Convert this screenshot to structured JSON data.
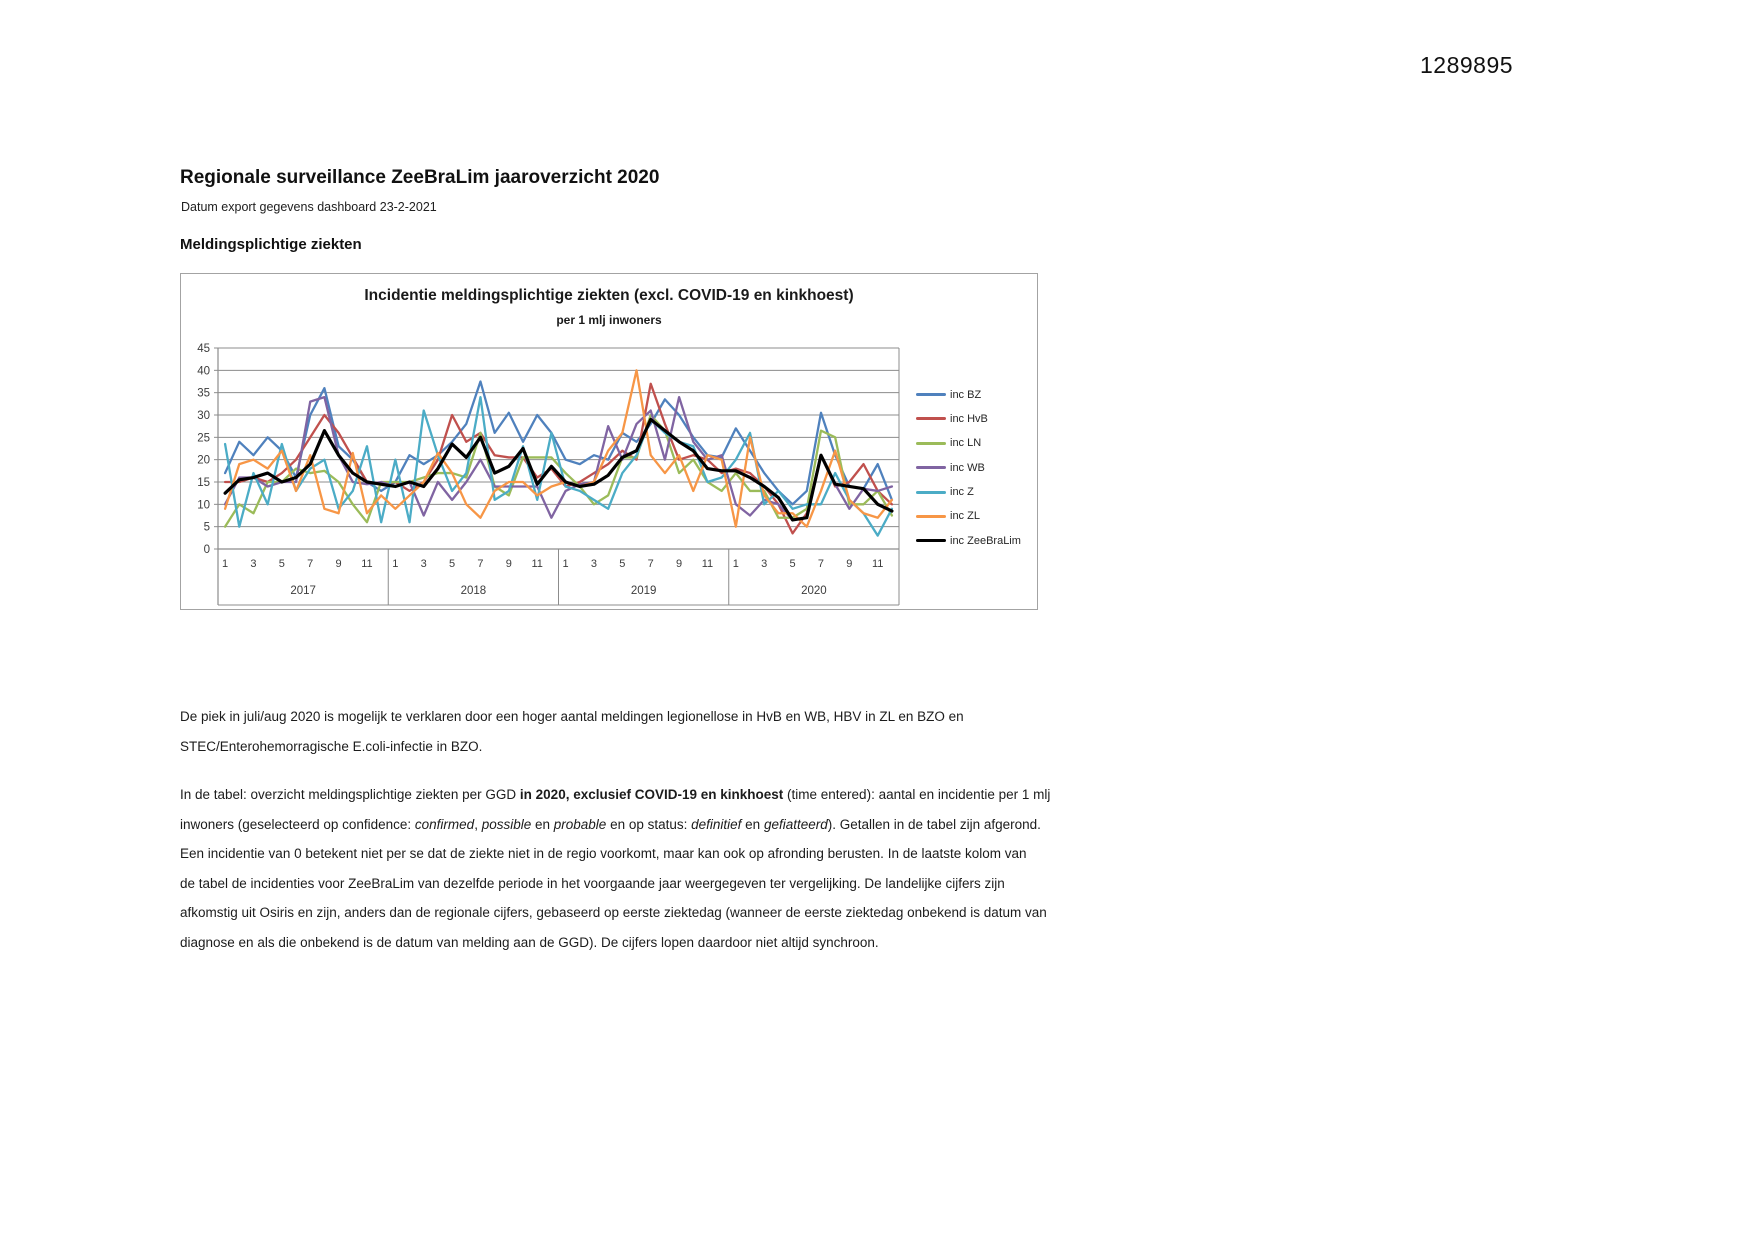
{
  "page": {
    "doc_number": "1289895"
  },
  "header": {
    "title": "Regionale surveillance ZeeBraLim jaaroverzicht 2020",
    "subtitle": "Datum export gegevens dashboard 23-2-2021",
    "section_heading": "Meldingsplichtige ziekten"
  },
  "chart_data": {
    "type": "line",
    "title": "Incidentie meldingsplichtige ziekten (excl. COVID-19 en kinkhoest)",
    "subtitle": "per 1 mlj inwoners",
    "xlabel": "",
    "ylabel": "",
    "ylim": [
      0,
      45
    ],
    "ytick_step": 5,
    "grid": true,
    "legend_position": "right",
    "x_axis": {
      "years": [
        "2017",
        "2018",
        "2019",
        "2020"
      ],
      "months_per_year": 12,
      "month_tick_labels": [
        "1",
        "3",
        "5",
        "7",
        "9",
        "11"
      ]
    },
    "series": [
      {
        "name": "inc BZ",
        "color": "#4F81BD",
        "width": 2.3,
        "values": [
          17,
          24,
          21,
          25,
          22,
          16,
          30,
          36,
          23,
          20,
          15,
          13,
          15,
          21,
          19,
          21,
          24,
          28,
          37.5,
          26,
          30.5,
          24,
          30,
          26,
          20,
          19,
          21,
          20,
          26,
          24,
          28,
          33.5,
          30,
          25,
          21,
          20.5,
          27,
          22,
          17,
          13,
          10,
          13,
          30.5,
          21,
          14,
          13.5,
          19,
          11
        ]
      },
      {
        "name": "inc HvB",
        "color": "#C0504D",
        "width": 2.3,
        "values": [
          15,
          15,
          16,
          15,
          17,
          20,
          25,
          30,
          26,
          20.5,
          15,
          14.5,
          15,
          13,
          15,
          20,
          30,
          24,
          26,
          21,
          20.5,
          20.5,
          16,
          18,
          14,
          15,
          17,
          19,
          22,
          20,
          37,
          28,
          20,
          21,
          20,
          17,
          18,
          17,
          14,
          10,
          3.5,
          8,
          21,
          14,
          15,
          19,
          13,
          10
        ]
      },
      {
        "name": "inc LN",
        "color": "#9BBB59",
        "width": 2.3,
        "values": [
          5,
          10,
          8,
          15,
          15,
          18,
          17,
          17.5,
          15,
          10,
          6,
          15,
          15,
          15,
          16,
          17,
          17,
          16,
          26,
          14,
          12,
          20.5,
          20.5,
          20.5,
          17,
          14,
          10,
          12,
          20.5,
          20.5,
          30,
          26.5,
          17,
          20,
          15,
          13,
          17,
          13,
          13,
          7,
          7,
          9,
          26.5,
          25,
          10,
          10,
          13,
          7.5
        ]
      },
      {
        "name": "inc WB",
        "color": "#8064A2",
        "width": 2.3,
        "values": [
          10,
          16,
          16,
          14,
          15,
          15,
          33,
          34,
          21,
          15,
          14.5,
          15,
          14,
          15,
          7.5,
          15,
          11,
          15,
          20,
          14,
          14,
          14,
          14,
          7,
          13,
          14.5,
          15,
          27.5,
          20,
          28,
          31,
          20,
          34,
          24,
          20,
          21,
          10,
          7.5,
          11,
          10,
          6.5,
          7,
          21,
          14.5,
          9,
          13.5,
          13,
          14
        ]
      },
      {
        "name": "inc Z",
        "color": "#4BACC6",
        "width": 2.3,
        "values": [
          23.5,
          5,
          17,
          10,
          23.5,
          13,
          18,
          20,
          9,
          13,
          23,
          6,
          20,
          6,
          31,
          21,
          13,
          17,
          34,
          11,
          13,
          23,
          11,
          26,
          14,
          13,
          11,
          9,
          17,
          21,
          29,
          26,
          24,
          23,
          15,
          16,
          20,
          26,
          10,
          13,
          9,
          10,
          10,
          17,
          11,
          8,
          3,
          9
        ]
      },
      {
        "name": "inc ZL",
        "color": "#F79646",
        "width": 2.3,
        "values": [
          9,
          19,
          20,
          18,
          22,
          13,
          21,
          9,
          8,
          21.5,
          8,
          12,
          9,
          12,
          15,
          21.5,
          17,
          10,
          7,
          13,
          15,
          15,
          12,
          14,
          15,
          14,
          15,
          22,
          26,
          40,
          21,
          17,
          21,
          13,
          21,
          20,
          5,
          25,
          12,
          8,
          8,
          5,
          13,
          22,
          11,
          8,
          7,
          11
        ]
      },
      {
        "name": "inc ZeeBraLim",
        "color": "#000000",
        "width": 3.2,
        "values": [
          12.5,
          15.5,
          16,
          17,
          15,
          16,
          19,
          26.5,
          21,
          17,
          15,
          14.5,
          14,
          15,
          14,
          18,
          23.5,
          20.5,
          25,
          17,
          18.5,
          22.5,
          14.5,
          18.5,
          15,
          14,
          14.5,
          16.5,
          20.5,
          22,
          29,
          26.5,
          24,
          22,
          18,
          17.5,
          17.5,
          16,
          14,
          11.5,
          6.5,
          7,
          21,
          14.5,
          14,
          13.5,
          10,
          8.5
        ]
      }
    ]
  },
  "body": {
    "para1_lines": [
      [
        {
          "t": "De piek in juli/aug 2020 is mogelijk te verklaren door een hoger aantal meldingen legionellose in HvB en WB, HBV in ZL en BZO en"
        }
      ],
      [
        {
          "t": "STEC/Enterohemorragische E.coli-infectie in BZO."
        }
      ]
    ],
    "para2_lines": [
      [
        {
          "t": "In de tabel: overzicht meldingsplichtige ziekten per GGD "
        },
        {
          "t": "in 2020, exclusief COVID-19 en kinkhoest",
          "b": true
        },
        {
          "t": " (time entered): aantal en incidentie per 1 mlj"
        }
      ],
      [
        {
          "t": "inwoners (geselecteerd op confidence: "
        },
        {
          "t": "confirmed",
          "i": true
        },
        {
          "t": ", "
        },
        {
          "t": "possible",
          "i": true
        },
        {
          "t": " en "
        },
        {
          "t": "probable",
          "i": true
        },
        {
          "t": " en op status: "
        },
        {
          "t": "definitief",
          "i": true
        },
        {
          "t": " en "
        },
        {
          "t": "gefiatteerd",
          "i": true
        },
        {
          "t": "). Getallen in de tabel zijn afgerond."
        }
      ],
      [
        {
          "t": "Een incidentie van 0 betekent niet per se dat de ziekte niet in de regio voorkomt, maar kan ook op afronding berusten. In de laatste kolom van"
        }
      ],
      [
        {
          "t": "de tabel de incidenties voor ZeeBraLim van dezelfde periode in het voorgaande jaar weergegeven ter vergelijking.  De landelijke cijfers zijn"
        }
      ],
      [
        {
          "t": "afkomstig uit Osiris en zijn, anders dan de regionale cijfers, gebaseerd op eerste ziektedag  (wanneer de eerste ziektedag onbekend is datum van"
        }
      ],
      [
        {
          "t": "diagnose en als die onbekend is de datum van melding aan de GGD). De cijfers lopen daardoor niet altijd synchroon."
        }
      ]
    ]
  }
}
